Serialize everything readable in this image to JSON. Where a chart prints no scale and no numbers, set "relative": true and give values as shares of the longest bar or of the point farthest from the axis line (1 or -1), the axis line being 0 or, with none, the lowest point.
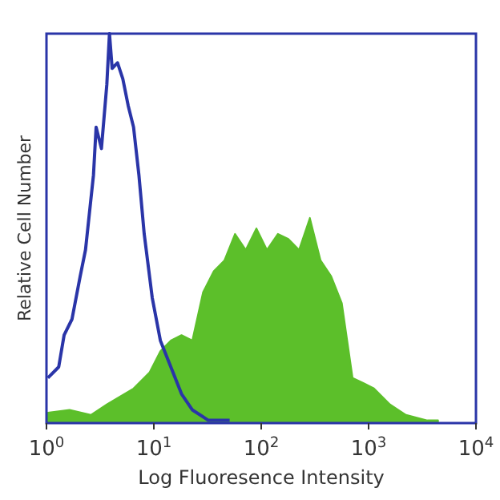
{
  "chart_data": {
    "type": "area",
    "relative": true,
    "log": "x",
    "xlabel": "Log Fluoresence Intensity",
    "ylabel": "Relative Cell Number",
    "xlim": [
      1,
      10000
    ],
    "xticks": [
      {
        "value": 1,
        "label": "10$^{0}$"
      },
      {
        "value": 10,
        "label": "10$^{1}$"
      },
      {
        "value": 100,
        "label": "10$^{2}$"
      },
      {
        "value": 1000,
        "label": "10$^{3}$"
      },
      {
        "value": 10000,
        "label": "10$^{4}$"
      }
    ],
    "tick_labels": "x",
    "grid": false,
    "series": [
      {
        "color": "#5cbf2a",
        "x": [
          1.03,
          1.64,
          2.59,
          3.65,
          6.47,
          9.12,
          11.5,
          14.4,
          18.1,
          22.8,
          28.7,
          36.1,
          45.4,
          57,
          71.8,
          90.2,
          113,
          143,
          179,
          225,
          284,
          357,
          449,
          564,
          710,
          892,
          1122,
          1581,
          2230,
          3524,
          4436
        ],
        "values": [
          0.027,
          0.034,
          0.021,
          0.048,
          0.089,
          0.13,
          0.185,
          0.212,
          0.226,
          0.212,
          0.336,
          0.39,
          0.418,
          0.486,
          0.445,
          0.5,
          0.445,
          0.486,
          0.473,
          0.445,
          0.527,
          0.418,
          0.377,
          0.308,
          0.116,
          0.103,
          0.089,
          0.048,
          0.021,
          0.007,
          0.007
        ]
      },
      {
        "type": "line",
        "color": "#2a35a8",
        "x": [
          1.03,
          1.3,
          1.46,
          1.73,
          2.06,
          2.31,
          2.74,
          2.9,
          3.25,
          3.65,
          3.86,
          4.09,
          4.59,
          5.14,
          5.77,
          6.47,
          7.26,
          8.13,
          9.66,
          11.5,
          14.4,
          18.1,
          22.8,
          32.2,
          50.8
        ],
        "values": [
          0.116,
          0.144,
          0.226,
          0.267,
          0.377,
          0.445,
          0.637,
          0.76,
          0.705,
          0.87,
          1,
          0.911,
          0.925,
          0.884,
          0.815,
          0.76,
          0.637,
          0.486,
          0.322,
          0.212,
          0.144,
          0.075,
          0.034,
          0.007,
          0.007
        ]
      }
    ]
  }
}
